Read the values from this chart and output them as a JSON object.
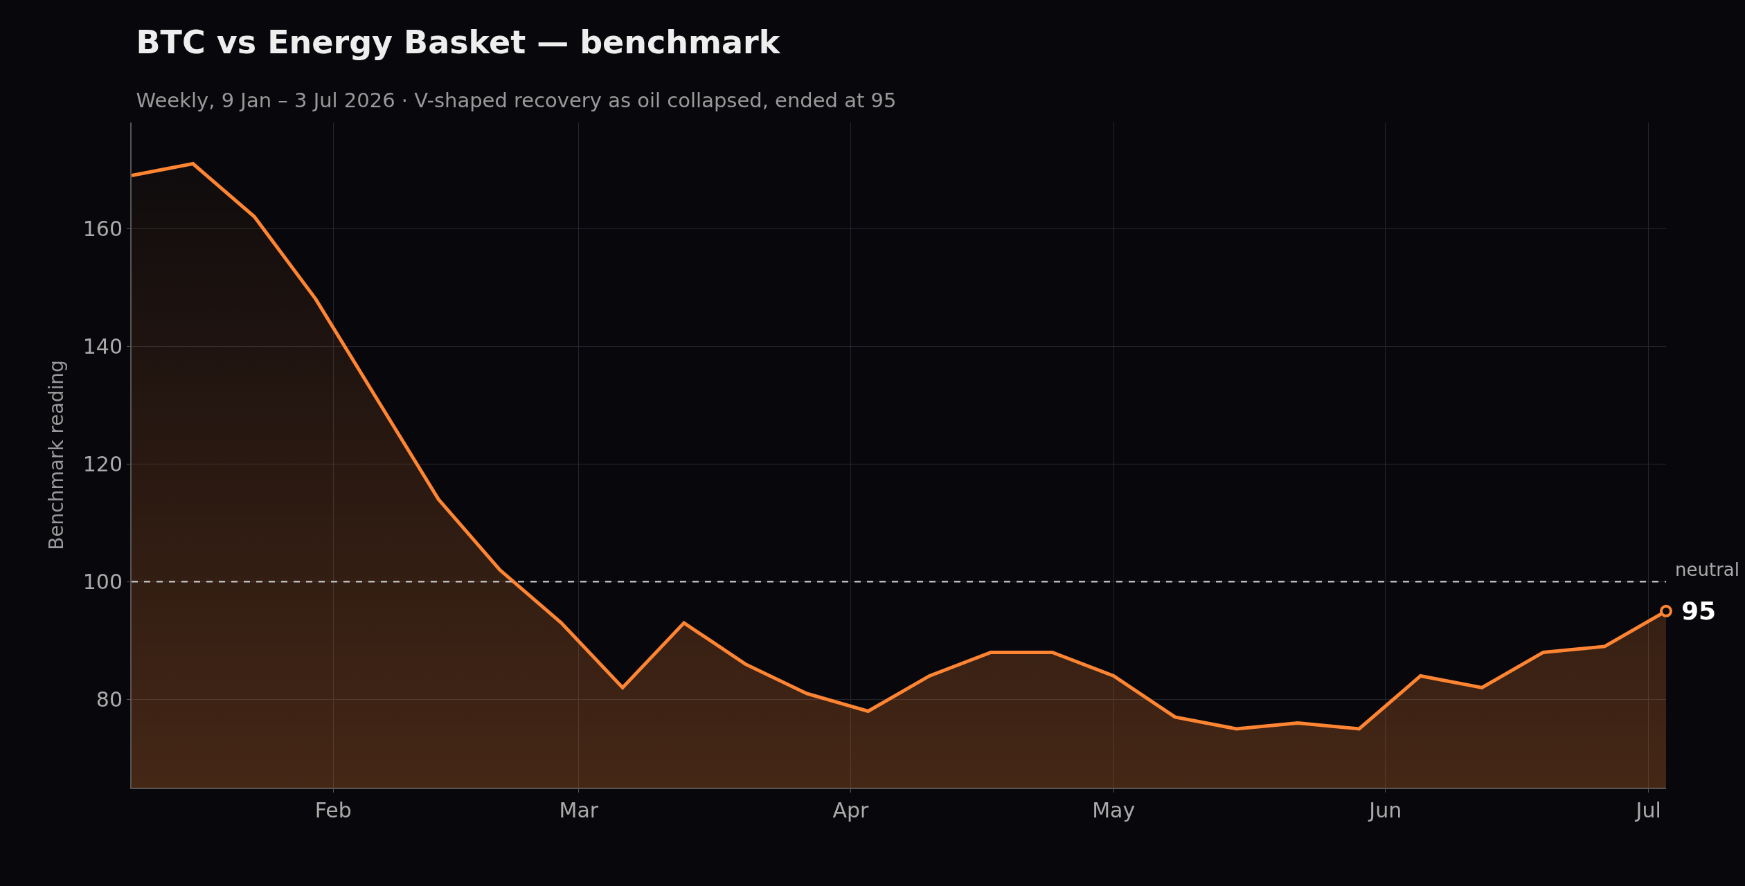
{
  "chart_data": {
    "type": "area",
    "title": "BTC vs Energy Basket — benchmark",
    "subtitle": "Weekly, 9 Jan – 3 Jul 2026 · V-shaped recovery as oil collapsed, ended at 95",
    "ylabel": "Benchmark reading",
    "x": [
      "2026-01-09",
      "2026-01-16",
      "2026-01-23",
      "2026-01-30",
      "2026-02-06",
      "2026-02-13",
      "2026-02-20",
      "2026-02-27",
      "2026-03-06",
      "2026-03-13",
      "2026-03-20",
      "2026-03-27",
      "2026-04-03",
      "2026-04-10",
      "2026-04-17",
      "2026-04-24",
      "2026-05-01",
      "2026-05-08",
      "2026-05-15",
      "2026-05-22",
      "2026-05-29",
      "2026-06-05",
      "2026-06-12",
      "2026-06-19",
      "2026-06-26",
      "2026-07-03"
    ],
    "series": [
      {
        "color": "#ff8533",
        "values": [
          169,
          171,
          162,
          148,
          131,
          114,
          102,
          93,
          82,
          93,
          86,
          81,
          78,
          84,
          88,
          88,
          84,
          77,
          75,
          76,
          75,
          84,
          82,
          88,
          89,
          95
        ]
      }
    ],
    "xlim": [
      "2026-01-09",
      "2026-07-03"
    ],
    "xticks": [
      {
        "value": "2026-02-01",
        "label": "Feb"
      },
      {
        "value": "2026-03-01",
        "label": "Mar"
      },
      {
        "value": "2026-04-01",
        "label": "Apr"
      },
      {
        "value": "2026-05-01",
        "label": "May"
      },
      {
        "value": "2026-06-01",
        "label": "Jun"
      },
      {
        "value": "2026-07-01",
        "label": "Jul"
      }
    ],
    "ylim": [
      65,
      178
    ],
    "yticks": [
      80,
      100,
      120,
      140,
      160
    ],
    "ref_lines": [
      {
        "axis": "y",
        "value": 100,
        "label": "neutral",
        "color": "#bbbbbb",
        "line_style": "dashed"
      }
    ],
    "annotations": [
      {
        "text": "95",
        "x": "2026-07-03",
        "y": 95
      }
    ],
    "grid": true,
    "legend": false,
    "marker": "none",
    "line_style": "solid"
  }
}
